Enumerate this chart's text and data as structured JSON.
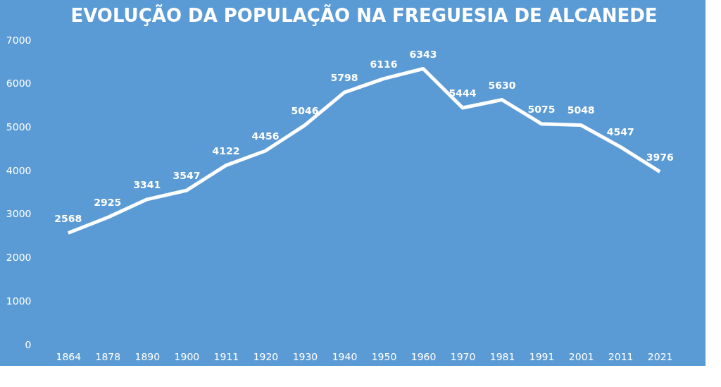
{
  "chart_data": {
    "type": "line",
    "title": "EVOLUÇÃO DA POPULAÇÃO NA FREGUESIA DE ALCANEDE",
    "categories": [
      "1864",
      "1878",
      "1890",
      "1900",
      "1911",
      "1920",
      "1930",
      "1940",
      "1950",
      "1960",
      "1970",
      "1981",
      "1991",
      "2001",
      "2011",
      "2021"
    ],
    "series": [
      {
        "color": "#ffffff",
        "values": [
          2568,
          2925,
          3341,
          3547,
          4122,
          4456,
          5046,
          5798,
          6116,
          6343,
          5444,
          5630,
          5075,
          5048,
          4547,
          3976
        ]
      }
    ],
    "ylim": [
      0,
      7000
    ],
    "yticks": [
      0,
      1000,
      2000,
      3000,
      4000,
      5000,
      6000,
      7000
    ],
    "data_labels": true,
    "grid": false,
    "marker": "none",
    "line_style": "solid"
  }
}
